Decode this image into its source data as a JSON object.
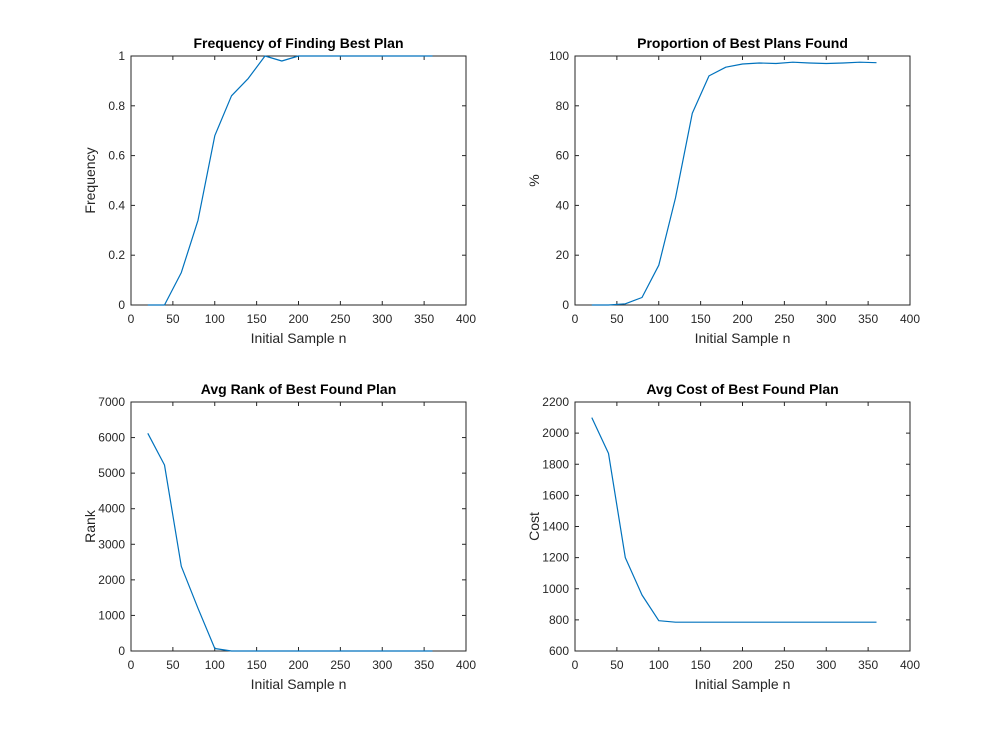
{
  "chart_data": [
    {
      "type": "line",
      "title": "Frequency of Finding Best Plan",
      "xlabel": "Initial Sample n",
      "ylabel": "Frequency",
      "xlim": [
        0,
        400
      ],
      "ylim": [
        0,
        1
      ],
      "xticks": [
        0,
        50,
        100,
        150,
        200,
        250,
        300,
        350,
        400
      ],
      "yticks": [
        0,
        0.2,
        0.4,
        0.6,
        0.8,
        1
      ],
      "xticklabels": [
        "0",
        "50",
        "100",
        "150",
        "200",
        "250",
        "300",
        "350",
        "400"
      ],
      "yticklabels": [
        "0",
        "0.2",
        "0.4",
        "0.6",
        "0.8",
        "1"
      ],
      "grid": false,
      "color": "#0072BD",
      "x": [
        20,
        40,
        60,
        80,
        100,
        120,
        140,
        160,
        180,
        200,
        220,
        240,
        260,
        280,
        300,
        320,
        340,
        360
      ],
      "y": [
        0,
        0,
        0.13,
        0.34,
        0.68,
        0.84,
        0.91,
        1.0,
        0.98,
        1.0,
        1.0,
        1.0,
        1.0,
        1.0,
        1.0,
        1.0,
        1.0,
        1.0
      ]
    },
    {
      "type": "line",
      "title": "Proportion of Best Plans Found",
      "xlabel": "Initial Sample n",
      "ylabel": "%",
      "xlim": [
        0,
        400
      ],
      "ylim": [
        0,
        100
      ],
      "xticks": [
        0,
        50,
        100,
        150,
        200,
        250,
        300,
        350,
        400
      ],
      "yticks": [
        0,
        20,
        40,
        60,
        80,
        100
      ],
      "xticklabels": [
        "0",
        "50",
        "100",
        "150",
        "200",
        "250",
        "300",
        "350",
        "400"
      ],
      "yticklabels": [
        "0",
        "20",
        "40",
        "60",
        "80",
        "100"
      ],
      "grid": false,
      "color": "#0072BD",
      "x": [
        20,
        40,
        60,
        80,
        100,
        120,
        140,
        160,
        180,
        200,
        220,
        240,
        260,
        280,
        300,
        320,
        340,
        360
      ],
      "y": [
        0,
        0,
        0.5,
        3,
        16,
        43,
        77,
        92,
        95.5,
        96.8,
        97.2,
        97,
        97.5,
        97.2,
        97,
        97.2,
        97.5,
        97.3
      ]
    },
    {
      "type": "line",
      "title": "Avg Rank of Best Found Plan",
      "xlabel": "Initial Sample n",
      "ylabel": "Rank",
      "xlim": [
        0,
        400
      ],
      "ylim": [
        0,
        7000
      ],
      "xticks": [
        0,
        50,
        100,
        150,
        200,
        250,
        300,
        350,
        400
      ],
      "yticks": [
        0,
        1000,
        2000,
        3000,
        4000,
        5000,
        6000,
        7000
      ],
      "xticklabels": [
        "0",
        "50",
        "100",
        "150",
        "200",
        "250",
        "300",
        "350",
        "400"
      ],
      "yticklabels": [
        "0",
        "1000",
        "2000",
        "3000",
        "4000",
        "5000",
        "6000",
        "7000"
      ],
      "grid": false,
      "color": "#0072BD",
      "x": [
        20,
        40,
        60,
        80,
        100,
        120,
        140,
        160,
        180,
        200,
        220,
        240,
        260,
        280,
        300,
        320,
        340,
        360
      ],
      "y": [
        6120,
        5230,
        2380,
        1200,
        70,
        0,
        0,
        0,
        0,
        0,
        0,
        0,
        0,
        0,
        0,
        0,
        0,
        0
      ]
    },
    {
      "type": "line",
      "title": "Avg Cost of Best Found Plan",
      "xlabel": "Initial Sample n",
      "ylabel": "Cost",
      "xlim": [
        0,
        400
      ],
      "ylim": [
        600,
        2200
      ],
      "xticks": [
        0,
        50,
        100,
        150,
        200,
        250,
        300,
        350,
        400
      ],
      "yticks": [
        600,
        800,
        1000,
        1200,
        1400,
        1600,
        1800,
        2000,
        2200
      ],
      "xticklabels": [
        "0",
        "50",
        "100",
        "150",
        "200",
        "250",
        "300",
        "350",
        "400"
      ],
      "yticklabels": [
        "600",
        "800",
        "1000",
        "1200",
        "1400",
        "1600",
        "1800",
        "2000",
        "2200"
      ],
      "grid": false,
      "color": "#0072BD",
      "x": [
        20,
        40,
        60,
        80,
        100,
        120,
        140,
        160,
        180,
        200,
        220,
        240,
        260,
        280,
        300,
        320,
        340,
        360
      ],
      "y": [
        2100,
        1870,
        1200,
        960,
        795,
        785,
        785,
        785,
        785,
        785,
        785,
        785,
        785,
        785,
        785,
        785,
        785,
        785
      ]
    }
  ]
}
